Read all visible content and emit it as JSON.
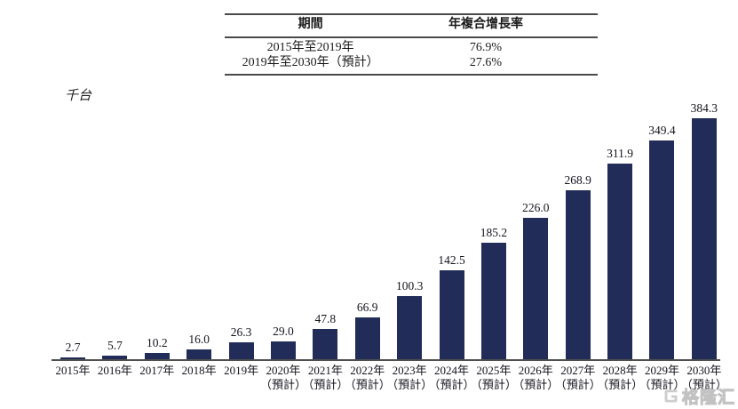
{
  "table": {
    "headers": [
      "期間",
      "年複合增長率"
    ],
    "rows": [
      {
        "period": "2015年至2019年",
        "cagr": "76.9%"
      },
      {
        "period": "2019年至2030年（預計）",
        "cagr": "27.6%"
      }
    ]
  },
  "chart_data": {
    "type": "bar",
    "title": "",
    "xlabel": "",
    "ylabel": "千台",
    "ylim": [
      0,
      400
    ],
    "grid": false,
    "legend": "none",
    "bar_color": "#212C58",
    "categories": [
      "2015年",
      "2016年",
      "2017年",
      "2018年",
      "2019年",
      "2020年（預計）",
      "2021年（預計）",
      "2022年（預計）",
      "2023年（預計）",
      "2024年（預計）",
      "2025年（預計）",
      "2026年（預計）",
      "2027年（預計）",
      "2028年（預計）",
      "2029年（預計）",
      "2030年（預計）"
    ],
    "values": [
      2.7,
      5.7,
      10.2,
      16.0,
      26.3,
      29.0,
      47.8,
      66.9,
      100.3,
      142.5,
      185.2,
      226.0,
      268.9,
      311.9,
      349.4,
      384.3
    ],
    "items": [
      {
        "year": "2015年",
        "note": "",
        "label": "2.7",
        "value": 2.7
      },
      {
        "year": "2016年",
        "note": "",
        "label": "5.7",
        "value": 5.7
      },
      {
        "year": "2017年",
        "note": "",
        "label": "10.2",
        "value": 10.2
      },
      {
        "year": "2018年",
        "note": "",
        "label": "16.0",
        "value": 16.0
      },
      {
        "year": "2019年",
        "note": "",
        "label": "26.3",
        "value": 26.3
      },
      {
        "year": "2020年",
        "note": "（預計）",
        "label": "29.0",
        "value": 29.0
      },
      {
        "year": "2021年",
        "note": "（預計）",
        "label": "47.8",
        "value": 47.8
      },
      {
        "year": "2022年",
        "note": "（預計）",
        "label": "66.9",
        "value": 66.9
      },
      {
        "year": "2023年",
        "note": "（預計）",
        "label": "100.3",
        "value": 100.3
      },
      {
        "year": "2024年",
        "note": "（預計）",
        "label": "142.5",
        "value": 142.5
      },
      {
        "year": "2025年",
        "note": "（預計）",
        "label": "185.2",
        "value": 185.2
      },
      {
        "year": "2026年",
        "note": "（預計）",
        "label": "226.0",
        "value": 226.0
      },
      {
        "year": "2027年",
        "note": "（預計）",
        "label": "268.9",
        "value": 268.9
      },
      {
        "year": "2028年",
        "note": "（預計）",
        "label": "311.9",
        "value": 311.9
      },
      {
        "year": "2029年",
        "note": "（預計）",
        "label": "349.4",
        "value": 349.4
      },
      {
        "year": "2030年",
        "note": "（預計）",
        "label": "384.3",
        "value": 384.3
      }
    ]
  },
  "watermark": {
    "icon": "gelonghui-logo",
    "text": "格隆汇"
  }
}
